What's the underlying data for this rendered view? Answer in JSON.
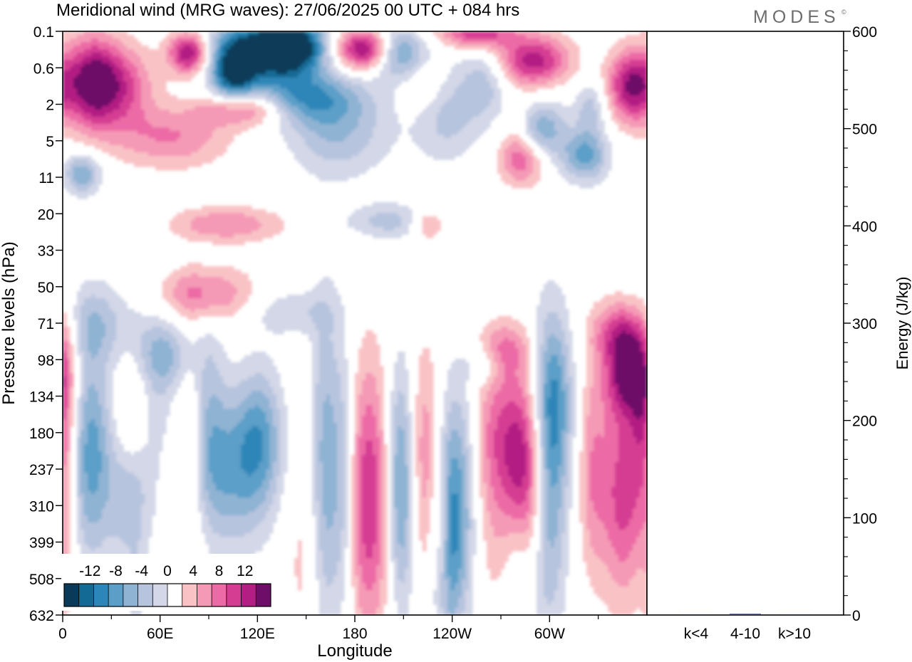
{
  "header": {
    "title": "Meridional wind (MRG waves):  27/06/2025  00 UTC  + 084 hrs",
    "brand": "MODES",
    "brand_mark": "©"
  },
  "chart_data": [
    {
      "type": "heatmap",
      "title": "Meridional wind (MRG waves):  27/06/2025  00 UTC  + 084 hrs",
      "xlabel": "Longitude",
      "ylabel": "Pressure levels (hPa)",
      "x_ticks": [
        "0",
        "60E",
        "120E",
        "180",
        "120W",
        "60W"
      ],
      "x_tick_degrees": [
        0,
        60,
        120,
        180,
        240,
        300
      ],
      "xlim": [
        0,
        360
      ],
      "y_ticks": [
        "0.1",
        "0.6",
        "2",
        "5",
        "11",
        "20",
        "33",
        "50",
        "71",
        "98",
        "134",
        "180",
        "237",
        "310",
        "399",
        "508",
        "632"
      ],
      "colorbar": {
        "labels": [
          "-12",
          "-8",
          "-4",
          "0",
          "4",
          "8",
          "12"
        ],
        "label_values": [
          -12,
          -8,
          -4,
          0,
          4,
          8,
          12
        ],
        "levels": [
          -14,
          -12,
          -10,
          -8,
          -6,
          -4,
          -2,
          2,
          4,
          6,
          8,
          10,
          12,
          14
        ],
        "colors": [
          "#0b3a58",
          "#136a94",
          "#2d86b8",
          "#5b9fc8",
          "#8fb3d3",
          "#b7c4de",
          "#d3d7e7",
          "#ffffff",
          "#f9c3c6",
          "#f59ab6",
          "#ec6aa5",
          "#d53d93",
          "#b21f83",
          "#6e0e68"
        ]
      },
      "colors": {
        "negative": "#136a94",
        "positive": "#d53d93",
        "zero": "#ffffff"
      }
    },
    {
      "type": "bar",
      "ylabel": "Energy (J/kg)",
      "categories": [
        "k<4",
        "4-10",
        "k>10"
      ],
      "values": [
        0.4,
        1.2,
        0.3
      ],
      "ylim": [
        0,
        600
      ],
      "y_ticks": [
        "0",
        "100",
        "200",
        "300",
        "400",
        "500",
        "600"
      ],
      "colors": {
        "bar": "#2b2c7a"
      }
    }
  ]
}
